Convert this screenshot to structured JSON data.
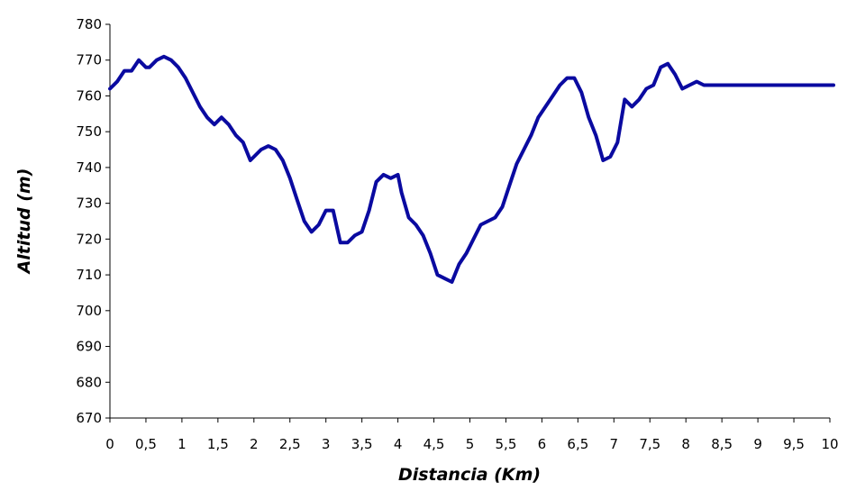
{
  "chart_data": {
    "type": "line",
    "xlabel": "Distancia (Km)",
    "ylabel": "Altitud (m)",
    "xlim": [
      0,
      10
    ],
    "ylim": [
      670,
      780
    ],
    "grid": false,
    "legend": "none",
    "x_ticks": [
      "0",
      "0,5",
      "1",
      "1,5",
      "2",
      "2,5",
      "3",
      "3,5",
      "4",
      "4,5",
      "5",
      "5,5",
      "6",
      "6,5",
      "7",
      "7,5",
      "8",
      "8,5",
      "9",
      "9,5",
      "10"
    ],
    "y_ticks": [
      "670",
      "680",
      "690",
      "700",
      "710",
      "720",
      "730",
      "740",
      "750",
      "760",
      "770",
      "780"
    ],
    "line_color": "#0a0aa0",
    "series": [
      {
        "x": [
          0,
          0.1,
          0.2,
          0.3,
          0.4,
          0.5,
          0.55,
          0.65,
          0.75,
          0.85,
          0.95,
          1.05,
          1.15,
          1.25,
          1.35,
          1.45,
          1.55,
          1.65,
          1.75,
          1.85,
          1.95,
          2.0,
          2.1,
          2.2,
          2.3,
          2.4,
          2.5,
          2.6,
          2.7,
          2.8,
          2.9,
          3.0,
          3.1,
          3.2,
          3.3,
          3.4,
          3.5,
          3.6,
          3.7,
          3.8,
          3.9,
          4.0,
          4.05,
          4.15,
          4.25,
          4.35,
          4.45,
          4.55,
          4.65,
          4.75,
          4.85,
          4.95,
          5.05,
          5.15,
          5.25,
          5.35,
          5.45,
          5.55,
          5.65,
          5.75,
          5.85,
          5.95,
          6.05,
          6.15,
          6.25,
          6.35,
          6.45,
          6.55,
          6.65,
          6.75,
          6.85,
          6.95,
          7.05,
          7.15,
          7.25,
          7.35,
          7.45,
          7.55,
          7.65,
          7.75,
          7.85,
          7.95,
          8.05,
          8.15,
          8.25,
          8.35,
          8.45,
          8.55,
          8.65,
          8.75,
          8.85,
          8.95,
          9.05,
          9.15,
          9.25,
          9.35,
          9.45,
          9.55,
          9.65,
          9.75,
          9.85,
          9.95,
          10.05
        ],
        "values": [
          762,
          764,
          767,
          767,
          770,
          768,
          768,
          770,
          771,
          770,
          768,
          765,
          761,
          757,
          754,
          752,
          754,
          752,
          749,
          747,
          742,
          743,
          745,
          746,
          745,
          742,
          737,
          731,
          725,
          722,
          724,
          728,
          728,
          719,
          719,
          721,
          722,
          728,
          736,
          738,
          737,
          738,
          733,
          726,
          724,
          721,
          716,
          710,
          709,
          708,
          713,
          716,
          720,
          724,
          725,
          726,
          729,
          735,
          741,
          745,
          749,
          754,
          757,
          760,
          763,
          765,
          765,
          761,
          754,
          749,
          742,
          743,
          747,
          759,
          757,
          759,
          762,
          763,
          768,
          769,
          766,
          762,
          763,
          764,
          763,
          763,
          763,
          763,
          763,
          763,
          763,
          763,
          763,
          763,
          763,
          763,
          763,
          763,
          763,
          763,
          763,
          763,
          763
        ]
      }
    ]
  }
}
